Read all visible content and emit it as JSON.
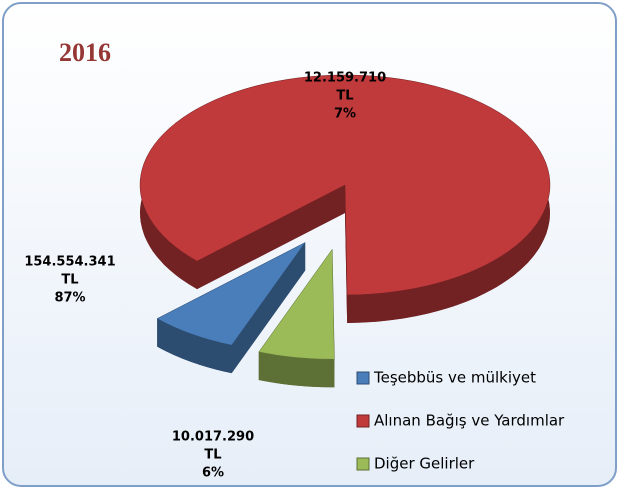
{
  "chart_data": {
    "type": "pie",
    "title": "2016",
    "categories": [
      "Teşebbüs ve mülkiyet",
      "Alınan Bağış ve Yardımlar",
      "Diğer Gelirler"
    ],
    "values": [
      7,
      87,
      6
    ],
    "value_labels": [
      "7%",
      "87%",
      "6%"
    ],
    "amounts": [
      12159710,
      154554341,
      10017290
    ],
    "amount_labels": [
      "12.159.710",
      "154.554.341",
      "10.017.290"
    ],
    "unit": "TL",
    "colors": [
      "#4a7ebb",
      "#c0393b",
      "#9bbb59"
    ],
    "legend": "right"
  }
}
